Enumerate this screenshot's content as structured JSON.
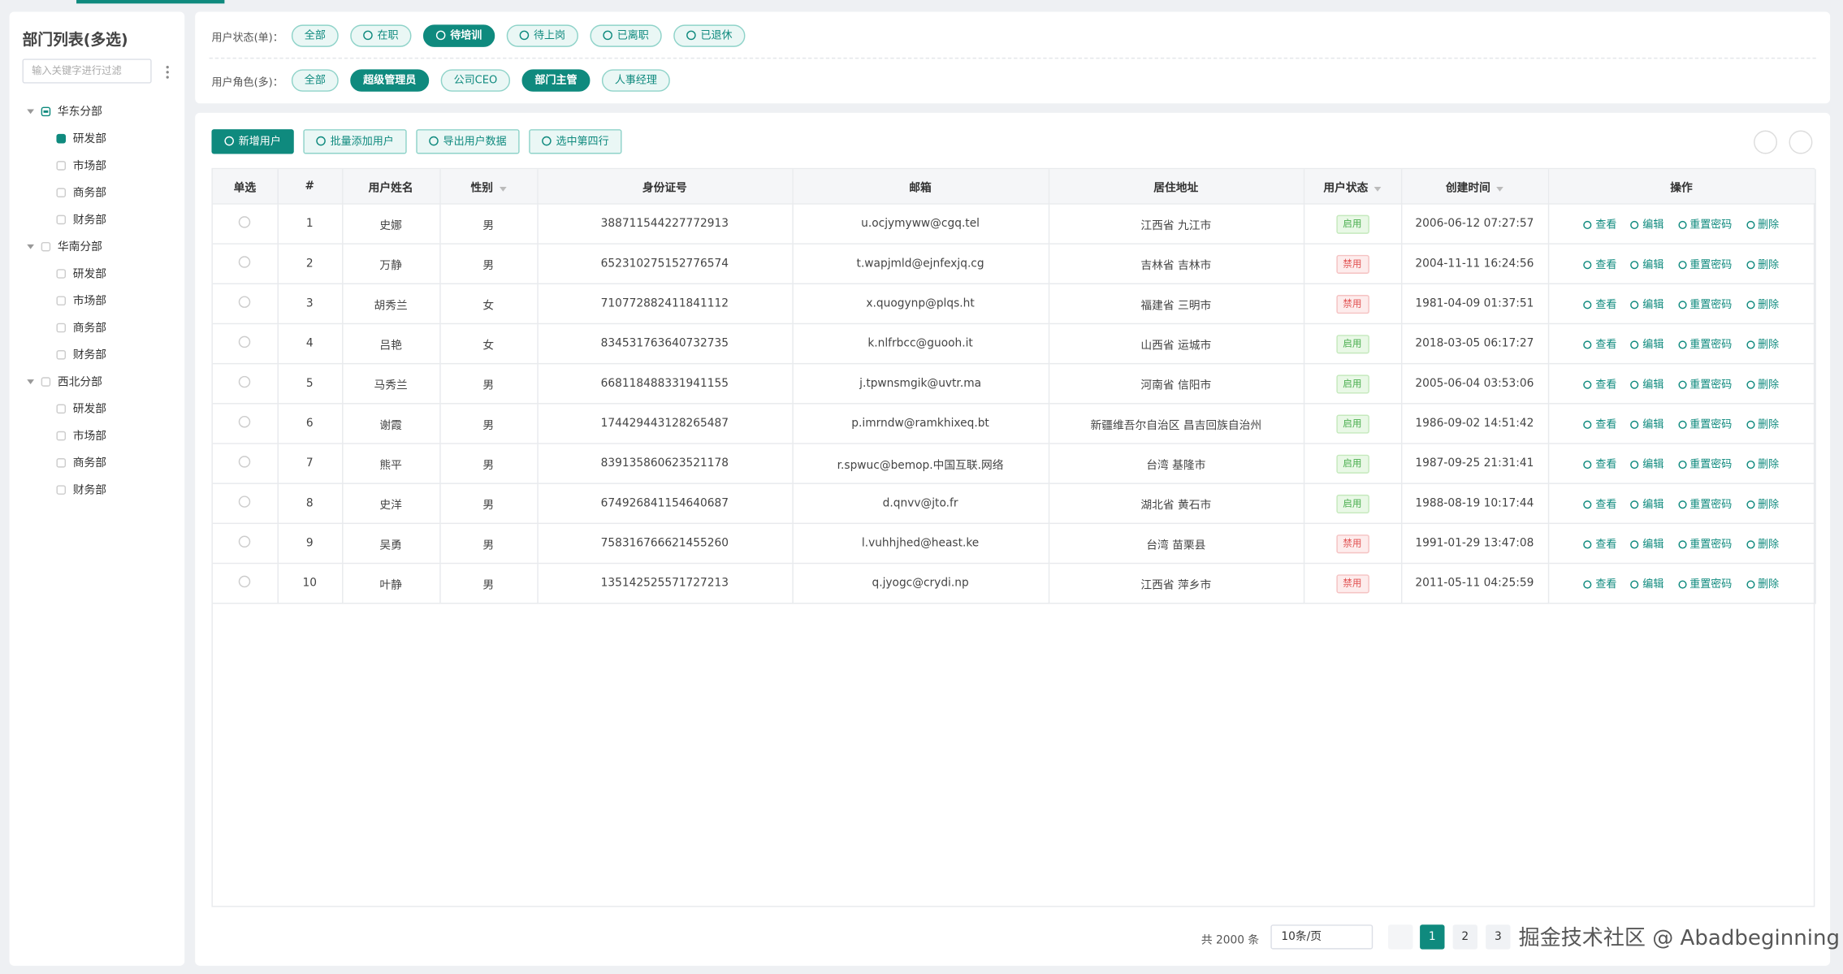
{
  "sidebar": {
    "title": "部门列表(多选)",
    "search_placeholder": "输入关键字进行过滤",
    "tree": [
      {
        "label": "华东分部",
        "children": [
          "研发部",
          "市场部",
          "商务部",
          "财务部"
        ]
      },
      {
        "label": "华南分部",
        "children": [
          "研发部",
          "市场部",
          "商务部",
          "财务部"
        ]
      },
      {
        "label": "西北分部",
        "children": [
          "研发部",
          "市场部",
          "商务部",
          "财务部"
        ]
      }
    ]
  },
  "filters": [
    {
      "label": "用户状态(单)：",
      "options": [
        "全部",
        "在职",
        "待培训",
        "待上岗",
        "已离职",
        "已退休"
      ],
      "active": [
        2
      ]
    },
    {
      "label": "用户角色(多)：",
      "options": [
        "全部",
        "超级管理员",
        "公司CEO",
        "部门主管",
        "人事经理"
      ],
      "active": [
        1,
        3
      ]
    }
  ],
  "toolbar": [
    "新增用户",
    "批量添加用户",
    "导出用户数据",
    "选中第四行"
  ],
  "table": {
    "columns": [
      "单选",
      "#",
      "用户姓名",
      "性别",
      "身份证号",
      "邮箱",
      "居住地址",
      "用户状态",
      "创建时间",
      "操作"
    ],
    "rows": [
      [
        "1",
        "史娜",
        "男",
        "388711544227772913",
        "u.ocjymyww@cgq.tel",
        "江西省 九江市",
        {
          "text": "启用",
          "tone": "success"
        },
        "2006-06-12 07:27:57"
      ],
      [
        "2",
        "万静",
        "男",
        "652310275152776574",
        "t.wapjmld@ejnfexjq.cg",
        "吉林省 吉林市",
        {
          "text": "禁用",
          "tone": "danger"
        },
        "2004-11-11 16:24:56"
      ],
      [
        "3",
        "胡秀兰",
        "女",
        "710772882411841112",
        "x.quogynp@plqs.ht",
        "福建省 三明市",
        {
          "text": "禁用",
          "tone": "danger"
        },
        "1981-04-09 01:37:51"
      ],
      [
        "4",
        "吕艳",
        "女",
        "834531763640732735",
        "k.nlfrbcc@guooh.it",
        "山西省 运城市",
        {
          "text": "启用",
          "tone": "success"
        },
        "2018-03-05 06:17:27"
      ],
      [
        "5",
        "马秀兰",
        "男",
        "668118488331941155",
        "j.tpwnsmgik@uvtr.ma",
        "河南省 信阳市",
        {
          "text": "启用",
          "tone": "success"
        },
        "2005-06-04 03:53:06"
      ],
      [
        "6",
        "谢霞",
        "男",
        "174429443128265487",
        "p.imrndw@ramkhixeq.bt",
        "新疆维吾尔自治区 昌吉回族自治州",
        {
          "text": "启用",
          "tone": "success"
        },
        "1986-09-02 14:51:42"
      ],
      [
        "7",
        "熊平",
        "男",
        "839135860623521178",
        "r.spwuc@bemop.中国互联.网络",
        "台湾 基隆市",
        {
          "text": "启用",
          "tone": "success"
        },
        "1987-09-25 21:31:41"
      ],
      [
        "8",
        "史洋",
        "男",
        "674926841154640687",
        "d.qnvv@jto.fr",
        "湖北省 黄石市",
        {
          "text": "启用",
          "tone": "success"
        },
        "1988-08-19 10:17:44"
      ],
      [
        "9",
        "吴勇",
        "男",
        "758316766621455260",
        "l.vuhhjhed@heast.ke",
        "台湾 苗栗县",
        {
          "text": "禁用",
          "tone": "danger"
        },
        "1991-01-29 13:47:08"
      ],
      [
        "10",
        "叶静",
        "男",
        "135142525571727213",
        "q.jyogc@crydi.np",
        "江西省 萍乡市",
        {
          "text": "禁用",
          "tone": "danger"
        },
        "2011-05-11 04:25:59"
      ]
    ],
    "actions": [
      "查看",
      "编辑",
      "重置密码",
      "删除"
    ]
  },
  "pagination": {
    "total": "共 2000 条",
    "page_size": "10条/页",
    "pages": [
      "1",
      "2",
      "3"
    ]
  },
  "watermark": "掘金技术社区 @ Abadbeginning"
}
